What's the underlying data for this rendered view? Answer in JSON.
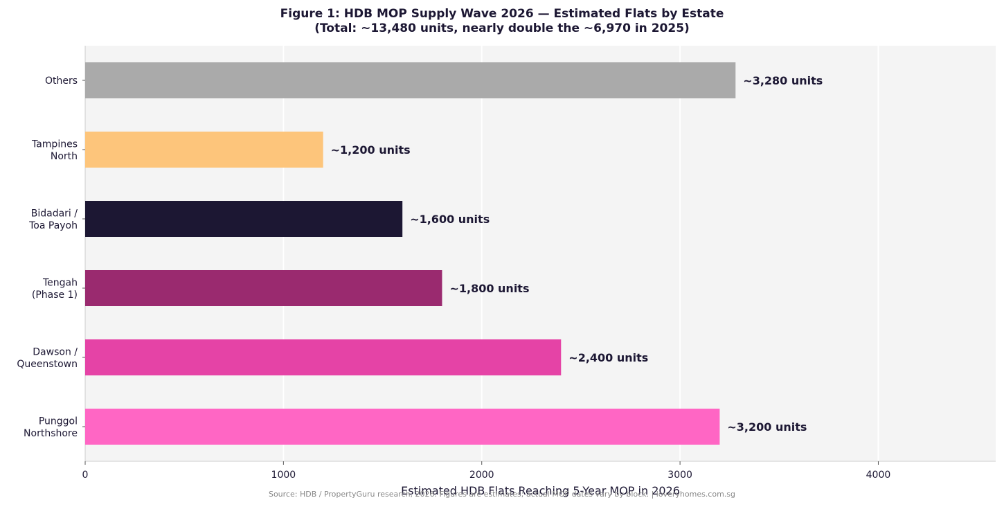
{
  "title_line1": "Figure 1: HDB MOP Supply Wave 2026 — Estimated Flats by Estate",
  "title_line2": "(Total: ~13,480 units, nearly double the ~6,970 in 2025)",
  "source": "Source: HDB / PropertyGuru research, 2026. Figures are estimates; actual MOP dates vary by block. | loveryhomes.com.sg",
  "chart_data": {
    "type": "bar",
    "orientation": "horizontal",
    "categories": [
      [
        "Punggol",
        "Northshore"
      ],
      [
        "Dawson /",
        "Queenstown"
      ],
      [
        "Tengah",
        "(Phase 1)"
      ],
      [
        "Bidadari /",
        "Toa Payoh"
      ],
      [
        "Tampines",
        "North"
      ],
      [
        "Others"
      ]
    ],
    "values": [
      3200,
      2400,
      1800,
      1600,
      1200,
      3280
    ],
    "data_labels": [
      "~3,200 units",
      "~2,400 units",
      "~1,800 units",
      "~1,600 units",
      "~1,200 units",
      "~3,280 units"
    ],
    "colors": [
      "#ff66c4",
      "#e543a6",
      "#9a2a6f",
      "#1c1733",
      "#fdc57b",
      "#aaaaaa"
    ],
    "xlabel": "Estimated HDB Flats Reaching 5-Year MOP in 2026",
    "ylabel": "",
    "xlim": [
      0,
      4592
    ],
    "xticks": [
      0,
      1000,
      2000,
      3000,
      4000
    ],
    "xtick_labels": [
      "0",
      "1000",
      "2000",
      "3000",
      "4000"
    ],
    "grid": "vertical",
    "legend": "none"
  },
  "style": {
    "plot_background": "#f4f4f4",
    "grid_color": "#ffffff",
    "axis_color": "#cccccc",
    "text_color": "#1c1733"
  }
}
